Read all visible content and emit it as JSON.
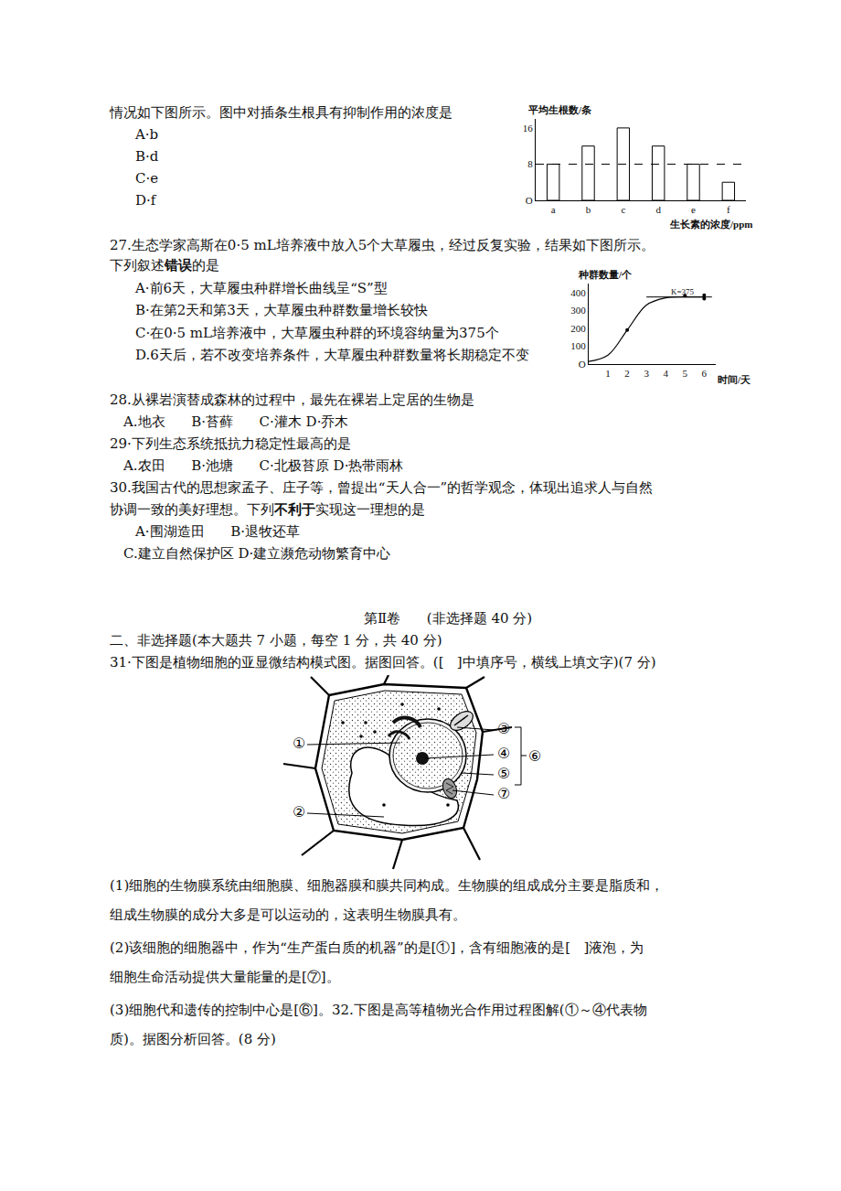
{
  "chart_data": [
    {
      "type": "bar",
      "y_label": "平均生根数/条",
      "x_label": "生长素的浓度/ppm",
      "categories": [
        "a",
        "b",
        "c",
        "d",
        "e",
        "f"
      ],
      "values": [
        8,
        12,
        16,
        12,
        8,
        4
      ],
      "color": "#ffffff",
      "ylim": [
        0,
        18
      ],
      "yticks": [
        {
          "value": 0,
          "label": "O"
        },
        8,
        16
      ],
      "grid": false,
      "reference_line": {
        "y": 8,
        "line_style": "dash"
      }
    },
    {
      "type": "line",
      "y_label": "种群数量/个",
      "x_label": "时间/天",
      "x": [
        0,
        1,
        2,
        3,
        4,
        5,
        6
      ],
      "values": [
        15,
        50,
        190,
        330,
        370,
        375,
        375
      ],
      "line_style": "smooth",
      "points": {
        "x": [
          2,
          5,
          6,
          6
        ],
        "y": [
          190,
          382,
          385,
          365
        ]
      },
      "k_line": {
        "y": 375,
        "x": [
          3,
          6.4
        ]
      },
      "annotations": [
        {
          "text": "K=375",
          "x": 4.9,
          "y": 405
        }
      ],
      "xlim": [
        0,
        6.6
      ],
      "ylim": [
        0,
        450
      ],
      "xticks": [
        1,
        2,
        3,
        4,
        5,
        6
      ],
      "yticks": [
        {
          "value": 0,
          "label": "O"
        },
        100,
        200,
        300,
        400
      ],
      "grid": false
    }
  ],
  "document": {
    "lines": [
      [
        {
          "text": "情况如下图所示。图中对插条生根具有抑制作用的浓度是"
        }
      ],
      [
        {
          "text": "A·b"
        }
      ],
      [
        {
          "text": "B·d"
        }
      ],
      [
        {
          "text": "C·e"
        }
      ],
      [
        {
          "text": "D·f"
        }
      ],
      [
        {
          "text": "27.生态学家高斯在0·5 mL培养液中放入5个大草履虫，经过反复实验，结果如下图所示。"
        }
      ],
      [
        {
          "text": "下列叙述"
        },
        {
          "text": "错误",
          "bold": true
        },
        {
          "text": "的是"
        }
      ],
      [
        {
          "text": "A·前6天，大草履虫种群增长曲线呈“S”型"
        }
      ],
      [
        {
          "text": "B·在第2天和第3天，大草履虫种群数量增长较快"
        }
      ],
      [
        {
          "text": "C·在0·5 mL培养液中，大草履虫种群的环境容纳量为375个"
        }
      ],
      [
        {
          "text": "D.6天后，若不改变培养条件，大草履虫种群数量将长期稳定不变"
        }
      ],
      [
        {
          "text": "28.从裸岩演替成森林的过程中，最先在裸岩上定居的生物是"
        }
      ],
      [
        {
          "text": "A.地衣      B·苔藓      C·灌木 D·乔木"
        }
      ],
      [
        {
          "text": "29·下列生态系统抵抗力稳定性最高的是"
        }
      ],
      [
        {
          "text": "A.农田      B·池塘      C·北极苔原 D·热带雨林"
        }
      ],
      [
        {
          "text": "30.我国古代的思想家孟子、庄子等，曾提出“天人合一”的哲学观念，体现出追求人与自然"
        }
      ],
      [
        {
          "text": "协调一致的美好理想。下列"
        },
        {
          "text": "不利于",
          "bold": true
        },
        {
          "text": "实现这一理想的是"
        }
      ],
      [
        {
          "text": "A·围湖造田      B·退牧还草"
        }
      ],
      [
        {
          "text": "C.建立自然保护区 D·建立濒危动物繁育中心"
        }
      ],
      [
        {
          "text": "第Ⅱ卷      (非选择题 40 分)"
        }
      ],
      [
        {
          "text": "二、非选择题(本大题共 7 小题，每空 1 分，共 40 分)"
        }
      ],
      [
        {
          "text": "31·下图是植物细胞的亚显微结构模式图。据图回答。([   ]中填序号，横线上填文字)(7 分)"
        }
      ],
      [
        {
          "text": "(1)细胞的生物膜系统由细胞膜、细胞器膜和膜共同构成。生物膜的组成成分主要是脂质和，"
        }
      ],
      [
        {
          "text": "组成生物膜的成分大多是可以运动的，这表明生物膜具有。"
        }
      ],
      [
        {
          "text": "(2)该细胞的细胞器中，作为“生产蛋白质的机器”的是[①]，含有细胞液的是[   ]液泡，为"
        }
      ],
      [
        {
          "text": "细胞生命活动提供大量能量的是[⑦]。"
        }
      ],
      [
        {
          "text": "(3)细胞代和遗传的控制中心是[⑥]。32.下图是高等植物光合作用过程图解(①～④代表物"
        }
      ],
      [
        {
          "text": "质)。据图分析回答。(8 分)"
        }
      ]
    ],
    "cell_diagram": {
      "labels": [
        "①",
        "②",
        "③",
        "④",
        "⑤",
        "⑦",
        "⑥"
      ]
    }
  }
}
